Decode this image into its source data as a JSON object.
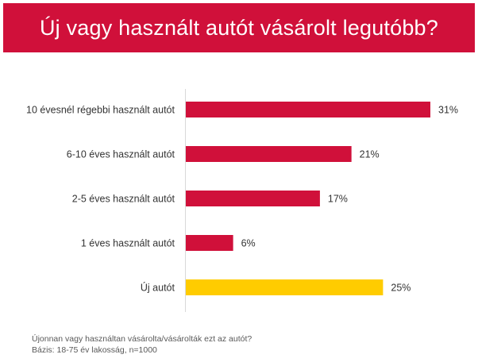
{
  "chart_data": {
    "type": "bar",
    "orientation": "horizontal",
    "title": "Új vagy használt autót vásárolt legutóbb?",
    "categories": [
      "10 évesnél régebbi használt autót",
      "6-10 éves használt autót",
      "2-5 éves használt autót",
      "1 éves használt autót",
      "Új autót"
    ],
    "values": [
      31,
      21,
      17,
      6,
      25
    ],
    "value_labels": [
      "31%",
      "21%",
      "17%",
      "6%",
      "25%"
    ],
    "unit": "%",
    "xlim": [
      0,
      31
    ],
    "grid": false,
    "colors": [
      "#D0103A",
      "#D0103A",
      "#D0103A",
      "#D0103A",
      "#FFCC00"
    ]
  },
  "footnote": {
    "question": "Újonnan vagy használtan vásárolta/vásárolták ezt az autót?",
    "base": "Bázis: 18-75 év lakosság, n=1000"
  }
}
